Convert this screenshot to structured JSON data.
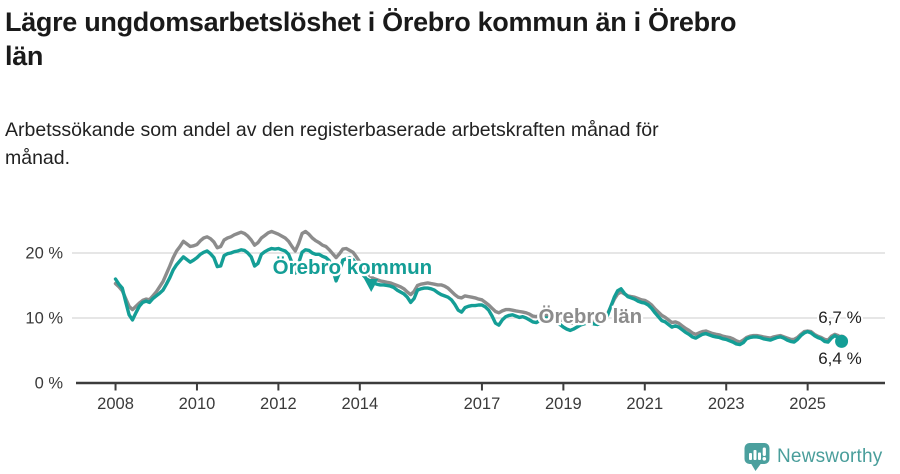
{
  "header": {
    "title_line1": "Lägre ungdomsarbetslöshet i Örebro kommun än i Örebro",
    "title_line2": "län",
    "subtitle_line1": "Arbetssökande som andel av den registerbaserade arbetskraften månad för",
    "subtitle_line2": "månad."
  },
  "footer": {
    "brand": "Newsworthy",
    "logo_icon": "bar-chart-speech-bubble-icon"
  },
  "colors": {
    "kommun": "#149E96",
    "lan": "#8C8C8C",
    "grid": "#D8D8D8",
    "axis": "#3C3C3C",
    "tick_text": "#3A3A3A",
    "annotation_text": "#1F1F1F",
    "brand": "#4BA09E"
  },
  "chart_data": {
    "type": "line",
    "title": "Lägre ungdomsarbetslöshet i Örebro kommun än i Örebro län",
    "subtitle": "Arbetssökande som andel av den registerbaserade arbetskraften månad för månad.",
    "x_start_year": 2008,
    "x_step_months": 1,
    "xlim": [
      2007.25,
      2026.9
    ],
    "ylim": [
      0,
      25.8
    ],
    "grid": "horizontal-only",
    "x_ticks": [
      {
        "value": 2008,
        "label": "2008"
      },
      {
        "value": 2010,
        "label": "2010"
      },
      {
        "value": 2012,
        "label": "2012"
      },
      {
        "value": 2014,
        "label": "2014"
      },
      {
        "value": 2017,
        "label": "2017"
      },
      {
        "value": 2019,
        "label": "2019"
      },
      {
        "value": 2021,
        "label": "2021"
      },
      {
        "value": 2023,
        "label": "2023"
      },
      {
        "value": 2025,
        "label": "2025"
      }
    ],
    "y_ticks": [
      {
        "value": 0,
        "label": "0 %"
      },
      {
        "value": 10,
        "label": "10 %"
      },
      {
        "value": 20,
        "label": "20 %"
      }
    ],
    "series": [
      {
        "name": "Örebro kommun",
        "color_key": "kommun",
        "values": [
          16.0,
          15.2,
          14.6,
          12.5,
          10.5,
          9.7,
          10.8,
          11.8,
          12.4,
          12.6,
          12.4,
          13.0,
          13.4,
          13.8,
          14.3,
          15.2,
          16.2,
          17.4,
          18.2,
          18.8,
          19.4,
          19.0,
          18.6,
          18.9,
          19.3,
          19.8,
          20.1,
          20.3,
          19.9,
          19.3,
          17.9,
          18.0,
          19.6,
          19.9,
          20.0,
          20.2,
          20.3,
          20.5,
          20.4,
          20.0,
          19.4,
          18.0,
          18.4,
          19.8,
          20.2,
          20.5,
          20.7,
          20.6,
          20.7,
          20.5,
          20.3,
          19.8,
          18.5,
          16.9,
          18.5,
          20.1,
          20.5,
          20.4,
          20.0,
          19.8,
          19.8,
          19.5,
          19.3,
          18.8,
          17.5,
          15.7,
          17.0,
          18.9,
          19.1,
          19.3,
          19.0,
          18.3,
          17.4,
          16.6,
          16.0,
          15.7,
          15.4,
          15.2,
          15.1,
          15.1,
          15.0,
          14.9,
          14.7,
          14.3,
          14.0,
          13.7,
          13.2,
          12.4,
          13.0,
          14.3,
          14.5,
          14.6,
          14.6,
          14.5,
          14.3,
          13.9,
          13.6,
          13.4,
          13.2,
          12.8,
          12.1,
          11.2,
          10.9,
          11.6,
          11.8,
          11.9,
          11.9,
          12.0,
          12.0,
          11.7,
          11.2,
          10.3,
          9.2,
          8.9,
          9.7,
          10.2,
          10.4,
          10.5,
          10.3,
          10.1,
          10.2,
          10.0,
          9.7,
          9.4,
          9.3,
          9.6,
          9.9,
          10.0,
          9.9,
          9.7,
          9.4,
          9.0,
          8.6,
          8.3,
          8.1,
          8.3,
          8.6,
          8.9,
          9.1,
          9.2,
          9.2,
          9.1,
          9.0,
          9.2,
          9.6,
          10.4,
          11.8,
          13.2,
          14.2,
          14.5,
          13.8,
          13.3,
          13.1,
          12.9,
          12.6,
          12.4,
          12.3,
          12.0,
          11.5,
          10.8,
          10.2,
          9.6,
          9.4,
          9.0,
          8.6,
          8.8,
          8.6,
          8.2,
          7.8,
          7.5,
          7.1,
          6.9,
          7.2,
          7.5,
          7.6,
          7.4,
          7.2,
          7.1,
          7.0,
          6.8,
          6.7,
          6.5,
          6.3,
          6.0,
          5.9,
          6.2,
          6.8,
          7.0,
          7.1,
          7.1,
          7.0,
          6.8,
          6.7,
          6.6,
          6.8,
          7.0,
          7.1,
          6.9,
          6.6,
          6.4,
          6.3,
          6.7,
          7.3,
          7.7,
          7.9,
          7.7,
          7.3,
          7.0,
          6.8,
          6.4,
          6.3,
          6.9,
          7.3,
          7.0,
          6.4
        ]
      },
      {
        "name": "Örebro län",
        "color_key": "lan",
        "values": [
          15.3,
          14.8,
          14.2,
          13.0,
          11.8,
          11.3,
          11.8,
          12.3,
          12.7,
          12.9,
          12.8,
          13.4,
          14.0,
          14.8,
          15.6,
          16.8,
          18.0,
          19.3,
          20.3,
          21.0,
          21.8,
          21.4,
          21.0,
          21.1,
          21.3,
          21.9,
          22.3,
          22.5,
          22.2,
          21.7,
          20.8,
          21.0,
          22.0,
          22.3,
          22.5,
          22.8,
          23.0,
          23.2,
          23.0,
          22.6,
          22.0,
          21.2,
          21.6,
          22.3,
          22.7,
          23.1,
          23.3,
          23.1,
          22.9,
          22.6,
          22.3,
          21.8,
          21.0,
          20.3,
          21.5,
          23.0,
          23.3,
          22.9,
          22.3,
          21.9,
          21.6,
          21.2,
          21.0,
          20.5,
          19.9,
          19.3,
          19.9,
          20.6,
          20.7,
          20.4,
          20.1,
          19.4,
          18.6,
          17.7,
          17.0,
          16.5,
          16.1,
          15.9,
          15.7,
          15.6,
          15.5,
          15.4,
          15.2,
          15.0,
          14.8,
          14.5,
          14.0,
          13.6,
          14.1,
          15.0,
          15.2,
          15.3,
          15.4,
          15.3,
          15.2,
          15.1,
          15.1,
          14.9,
          14.6,
          14.1,
          13.6,
          13.2,
          13.1,
          13.4,
          13.3,
          13.2,
          13.1,
          12.9,
          12.8,
          12.4,
          12.0,
          11.5,
          11.0,
          10.8,
          11.1,
          11.3,
          11.3,
          11.2,
          11.1,
          11.0,
          10.9,
          10.8,
          10.6,
          10.3,
          10.2,
          10.4,
          10.5,
          10.5,
          10.4,
          10.2,
          10.0,
          9.8,
          9.6,
          9.4,
          9.2,
          9.2,
          9.3,
          9.4,
          9.5,
          9.6,
          9.6,
          9.5,
          9.5,
          9.7,
          10.0,
          10.6,
          11.8,
          12.9,
          13.7,
          14.0,
          13.7,
          13.4,
          13.3,
          13.2,
          13.0,
          12.8,
          12.7,
          12.4,
          12.0,
          11.4,
          10.9,
          10.4,
          10.1,
          9.7,
          9.3,
          9.4,
          9.2,
          8.8,
          8.4,
          8.1,
          7.7,
          7.5,
          7.7,
          7.9,
          8.0,
          7.8,
          7.6,
          7.5,
          7.4,
          7.2,
          7.1,
          7.0,
          6.8,
          6.5,
          6.3,
          6.6,
          7.0,
          7.2,
          7.3,
          7.3,
          7.2,
          7.1,
          7.0,
          6.9,
          7.1,
          7.2,
          7.3,
          7.1,
          6.9,
          6.7,
          6.7,
          7.0,
          7.5,
          7.9,
          8.0,
          7.9,
          7.5,
          7.2,
          7.0,
          6.7,
          6.6,
          7.2,
          7.5,
          7.3,
          6.7
        ]
      }
    ],
    "series_labels": [
      {
        "text": "Örebro kommun",
        "x": 2011.86,
        "y_pct": 16.8,
        "color_key": "kommun",
        "pointer": {
          "x": 2014.28,
          "y_top_pct": 16.0,
          "y_tip_pct": 14.0
        }
      },
      {
        "text": "Örebro län",
        "x": 2018.39,
        "y_pct": 9.25,
        "color_key": "lan"
      }
    ],
    "end_annotations": [
      {
        "text": "6,7 %",
        "series": "Örebro län",
        "x": 2025.26,
        "y_pct": 9.2
      },
      {
        "text": "6,4 %",
        "series": "Örebro kommun",
        "x": 2025.26,
        "y_pct": 2.95
      }
    ],
    "end_markers": [
      {
        "series": "Örebro län",
        "value": 6.7,
        "radius": 5
      },
      {
        "series": "Örebro kommun",
        "value": 6.4,
        "radius": 6.5
      }
    ],
    "legend_position": "inline-labels"
  }
}
